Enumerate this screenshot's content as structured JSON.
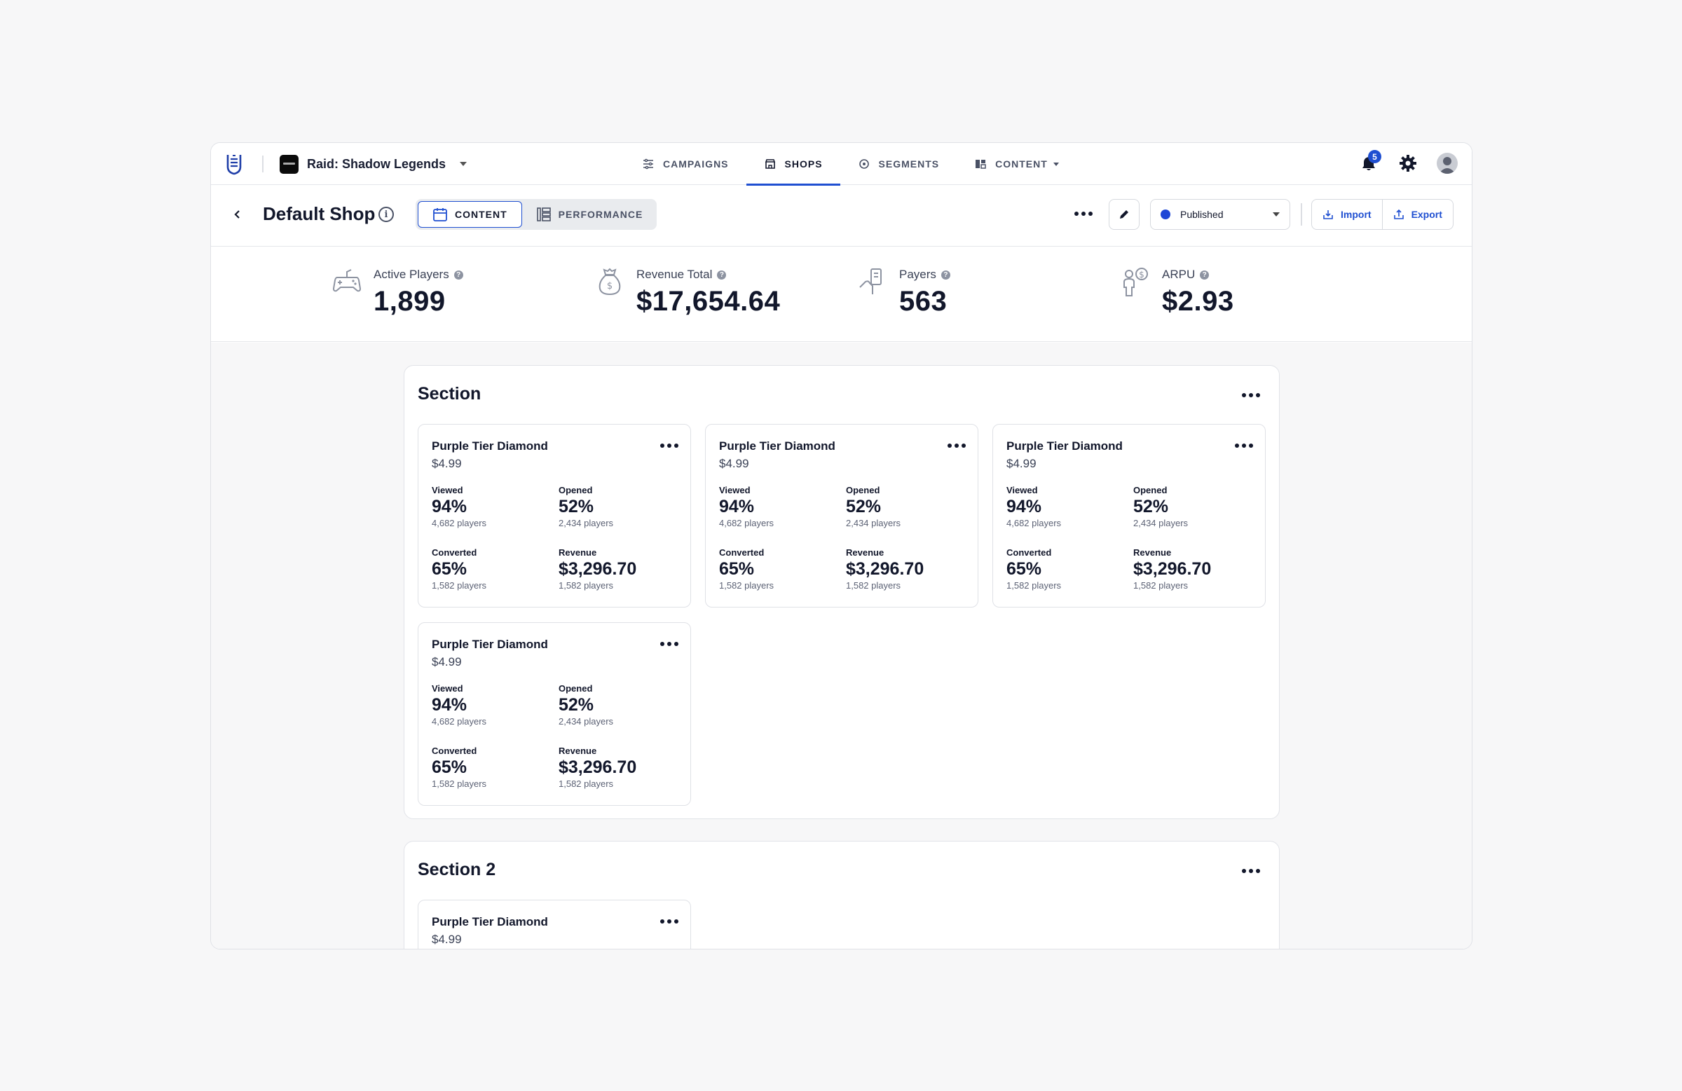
{
  "header": {
    "game_name": "Raid: Shadow Legends",
    "nav": [
      {
        "label": "CAMPAIGNS",
        "icon": "campaigns-icon"
      },
      {
        "label": "SHOPS",
        "icon": "shop-icon"
      },
      {
        "label": "SEGMENTS",
        "icon": "segments-icon"
      },
      {
        "label": "CONTENT",
        "icon": "content-icon"
      }
    ],
    "notification_count": "5"
  },
  "subbar": {
    "title": "Default Shop",
    "info_glyph": "i",
    "tabs": [
      {
        "label": "CONTENT"
      },
      {
        "label": "PERFORMANCE"
      }
    ],
    "status": "Published",
    "import_label": "Import",
    "export_label": "Export"
  },
  "kpis": [
    {
      "label": "Active Players",
      "value": "1,899",
      "help": "?"
    },
    {
      "label": "Revenue Total",
      "value": "$17,654.64",
      "help": "?"
    },
    {
      "label": "Payers",
      "value": "563",
      "help": "?"
    },
    {
      "label": "ARPU",
      "value": "$2.93",
      "help": "?"
    }
  ],
  "sections": [
    {
      "title": "Section",
      "cards": [
        {
          "name": "Purple Tier Diamond",
          "price": "$4.99",
          "viewed": {
            "label": "Viewed",
            "value": "94%",
            "sub": "4,682 players"
          },
          "opened": {
            "label": "Opened",
            "value": "52%",
            "sub": "2,434 players"
          },
          "converted": {
            "label": "Converted",
            "value": "65%",
            "sub": "1,582 players"
          },
          "revenue": {
            "label": "Revenue",
            "value": "$3,296.70",
            "sub": "1,582 players"
          }
        },
        {
          "name": "Purple Tier Diamond",
          "price": "$4.99",
          "viewed": {
            "label": "Viewed",
            "value": "94%",
            "sub": "4,682 players"
          },
          "opened": {
            "label": "Opened",
            "value": "52%",
            "sub": "2,434 players"
          },
          "converted": {
            "label": "Converted",
            "value": "65%",
            "sub": "1,582 players"
          },
          "revenue": {
            "label": "Revenue",
            "value": "$3,296.70",
            "sub": "1,582 players"
          }
        },
        {
          "name": "Purple Tier Diamond",
          "price": "$4.99",
          "viewed": {
            "label": "Viewed",
            "value": "94%",
            "sub": "4,682 players"
          },
          "opened": {
            "label": "Opened",
            "value": "52%",
            "sub": "2,434 players"
          },
          "converted": {
            "label": "Converted",
            "value": "65%",
            "sub": "1,582 players"
          },
          "revenue": {
            "label": "Revenue",
            "value": "$3,296.70",
            "sub": "1,582 players"
          }
        },
        {
          "name": "Purple Tier Diamond",
          "price": "$4.99",
          "viewed": {
            "label": "Viewed",
            "value": "94%",
            "sub": "4,682 players"
          },
          "opened": {
            "label": "Opened",
            "value": "52%",
            "sub": "2,434 players"
          },
          "converted": {
            "label": "Converted",
            "value": "65%",
            "sub": "1,582 players"
          },
          "revenue": {
            "label": "Revenue",
            "value": "$3,296.70",
            "sub": "1,582 players"
          }
        }
      ]
    },
    {
      "title": "Section 2",
      "cards": [
        {
          "name": "Purple Tier Diamond",
          "price": "$4.99"
        }
      ]
    }
  ],
  "colors": {
    "accent": "#1f4fd1",
    "status_dot": "#1f47d6",
    "text": "#12172b"
  }
}
